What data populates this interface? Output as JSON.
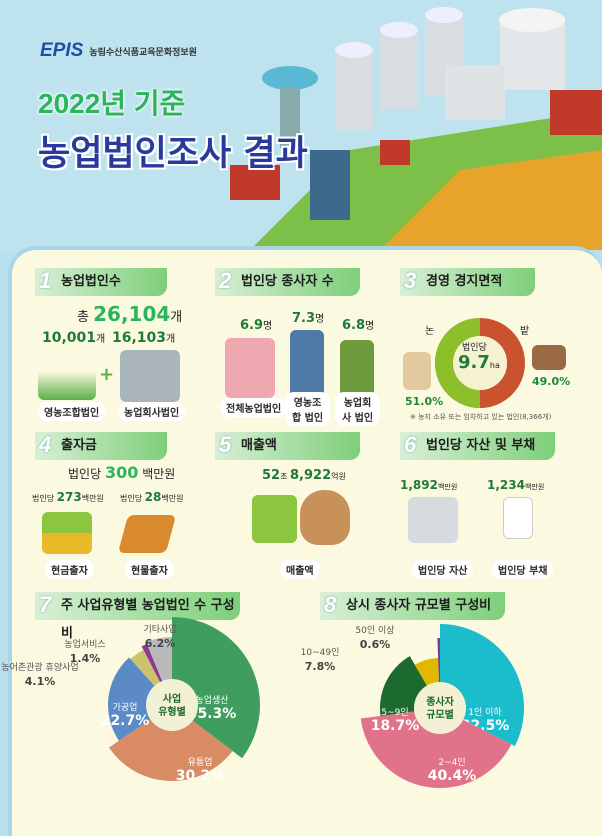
{
  "header": {
    "logo": "EPIS",
    "org": "농림수산식품교육문화정보원",
    "subtitle": "2022년 기준",
    "title": "농업법인조사 결과"
  },
  "s1": {
    "num": "1",
    "title": "농업법인수",
    "total_prefix": "총",
    "total": "26,104",
    "total_unit": "개",
    "a_value": "10,001",
    "a_unit": "개",
    "a_label": "영농조합법인",
    "b_value": "16,103",
    "b_unit": "개",
    "b_label": "농업회사법인",
    "plus": "+"
  },
  "s2": {
    "num": "2",
    "title": "법인당 종사자 수",
    "items": [
      {
        "value": "6.9",
        "unit": "명",
        "label": "전체농업법인"
      },
      {
        "value": "7.3",
        "unit": "명",
        "label": "영농조합 법인"
      },
      {
        "value": "6.8",
        "unit": "명",
        "label": "농업회사 법인"
      }
    ]
  },
  "s3": {
    "num": "3",
    "title": "경영 경지면적",
    "center_label": "법인당",
    "center_value": "9.7",
    "center_unit": "ha",
    "paddy_label": "논",
    "paddy_pct": "51.0%",
    "field_label": "밭",
    "field_pct": "49.0%",
    "note": "※ 농지 소유 또는 임차하고 있는 법인(8,366개)",
    "colors": {
      "paddy": "#8cbf2a",
      "field": "#c8532e"
    }
  },
  "s4": {
    "num": "4",
    "title": "출자금",
    "per_label": "법인당",
    "per_value": "300",
    "per_unit": "백만원",
    "a_prefix": "법인당",
    "a_value": "273",
    "a_unit": "백만원",
    "a_label": "현금출자",
    "b_prefix": "법인당",
    "b_value": "28",
    "b_unit": "백만원",
    "b_label": "현물출자"
  },
  "s5": {
    "num": "5",
    "title": "매출액",
    "value_a": "52",
    "unit_a": "조",
    "value_b": "8,922",
    "unit_b": "억원",
    "label": "매출액"
  },
  "s6": {
    "num": "6",
    "title": "법인당 자산 및 부채",
    "a_value": "1,892",
    "a_unit": "백만원",
    "a_label": "법인당 자산",
    "b_value": "1,234",
    "b_unit": "백만원",
    "b_label": "법인당 부채"
  },
  "chart_data": [
    {
      "type": "pie",
      "section": "7",
      "title": "주 사업유형별 농업법인 수 구성비",
      "center_label": "사업 유형별",
      "categories": [
        "농업생산",
        "유통업",
        "가공업",
        "농어촌관광 휴양사업",
        "농업서비스",
        "기타사업"
      ],
      "values": [
        35.3,
        30.2,
        22.7,
        4.1,
        1.4,
        6.2
      ],
      "unit": "%",
      "colors": [
        "#3f9e5f",
        "#d98b64",
        "#5b8bc6",
        "#cbc26d",
        "#8b3a90",
        "#b9b9b9"
      ]
    },
    {
      "type": "pie",
      "section": "8",
      "title": "상시 종사자 규모별 구성비",
      "center_label": "종사자 규모별",
      "categories": [
        "1인 이하",
        "2~4인",
        "5~9인",
        "10~49인",
        "50인 이상"
      ],
      "values": [
        32.5,
        40.4,
        18.7,
        7.8,
        0.6
      ],
      "unit": "%",
      "colors": [
        "#1bbccc",
        "#e07289",
        "#1d6a2e",
        "#e2b700",
        "#7d3b8d"
      ]
    }
  ]
}
